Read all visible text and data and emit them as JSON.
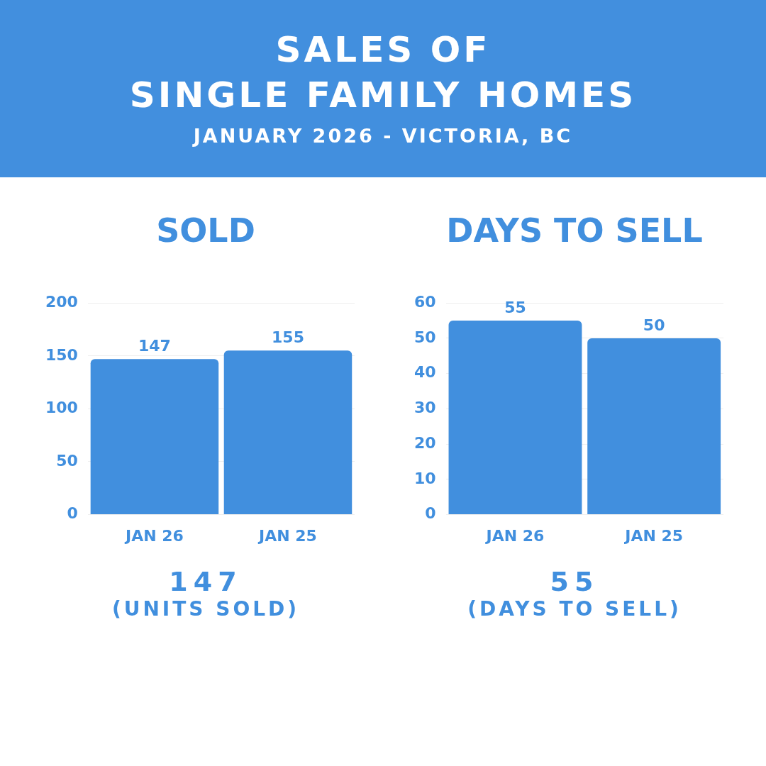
{
  "chart_data": [
    {
      "type": "other",
      "title": "SALES OF\nSINGLE FAMILY HOMES",
      "subtitle": "JANUARY 2026 - VICTORIA, BC"
    },
    {
      "type": "bar",
      "title": "SOLD",
      "categories": [
        "JAN 26",
        "JAN 25"
      ],
      "values": [
        147,
        155
      ],
      "color": "#418fde",
      "ylim": [
        0,
        200
      ],
      "yticks": [
        0,
        50,
        100,
        150,
        200
      ],
      "grid": "y",
      "data_labels": true,
      "annotations": [
        "147",
        "(UNITS SOLD)"
      ]
    },
    {
      "type": "bar",
      "title": "DAYS TO SELL",
      "categories": [
        "JAN 26",
        "JAN 25"
      ],
      "values": [
        55,
        50
      ],
      "color": "#418fde",
      "ylim": [
        0,
        60
      ],
      "yticks": [
        0,
        10,
        20,
        30,
        40,
        50,
        60
      ],
      "grid": "y",
      "data_labels": true,
      "annotations": [
        "55",
        "(DAYS TO SELL)"
      ]
    }
  ]
}
